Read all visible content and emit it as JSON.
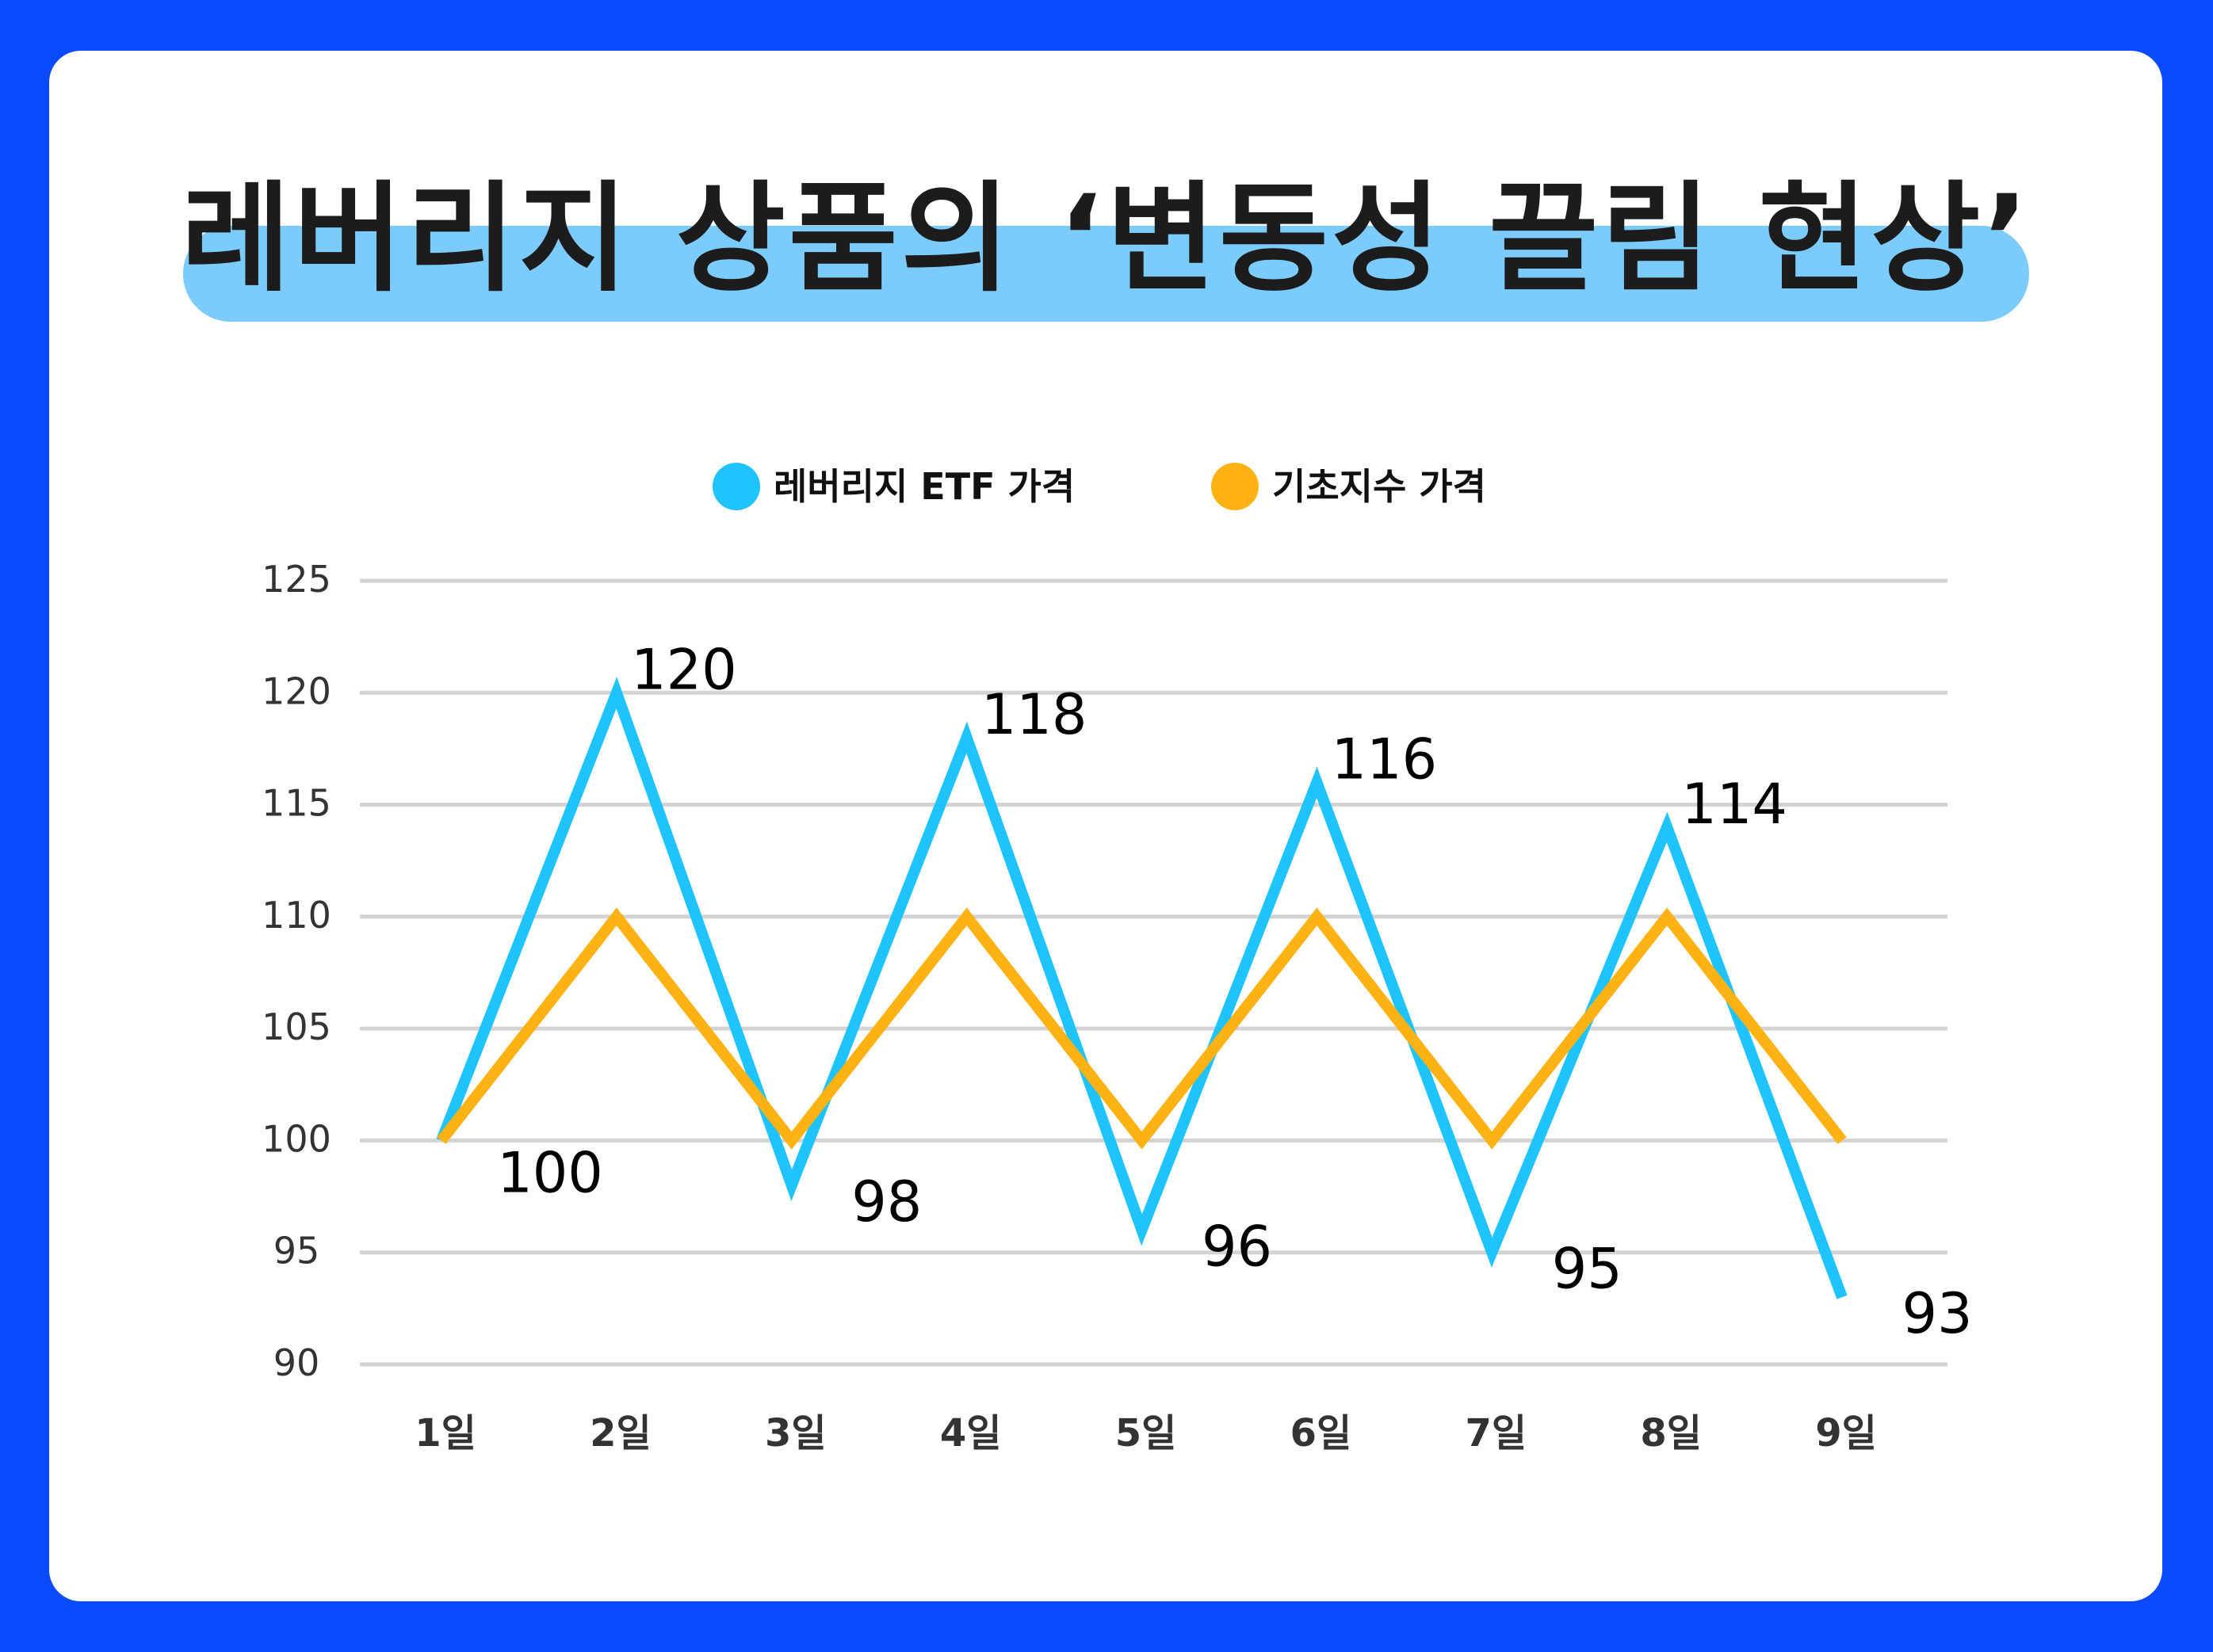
{
  "title": "레버리지 상품의 ‘변동성 끌림 현상’",
  "colors": {
    "background": "#0a4bff",
    "title_band": "#7ccbfd",
    "etf": "#1ec3ff",
    "index": "#ffb214",
    "grid": "#d3d3d3"
  },
  "chart_data": {
    "type": "line",
    "title": "레버리지 상품의 ‘변동성 끌림 현상’",
    "categories": [
      "1일",
      "2일",
      "3일",
      "4일",
      "5일",
      "6일",
      "7일",
      "8일",
      "9일"
    ],
    "series": [
      {
        "name": "레버리지 ETF 가격",
        "color": "#1ec3ff",
        "values": [
          100,
          120,
          98,
          118,
          96,
          116,
          95,
          114,
          93
        ],
        "data_labels": true
      },
      {
        "name": "기초지수 가격",
        "color": "#ffb214",
        "values": [
          100,
          110,
          100,
          110,
          100,
          110,
          100,
          110,
          100
        ],
        "data_labels": false
      }
    ],
    "yticks": [
      90,
      95,
      100,
      105,
      110,
      115,
      120,
      125
    ],
    "ylim": [
      90,
      125
    ],
    "grid": true,
    "legend": "top"
  }
}
